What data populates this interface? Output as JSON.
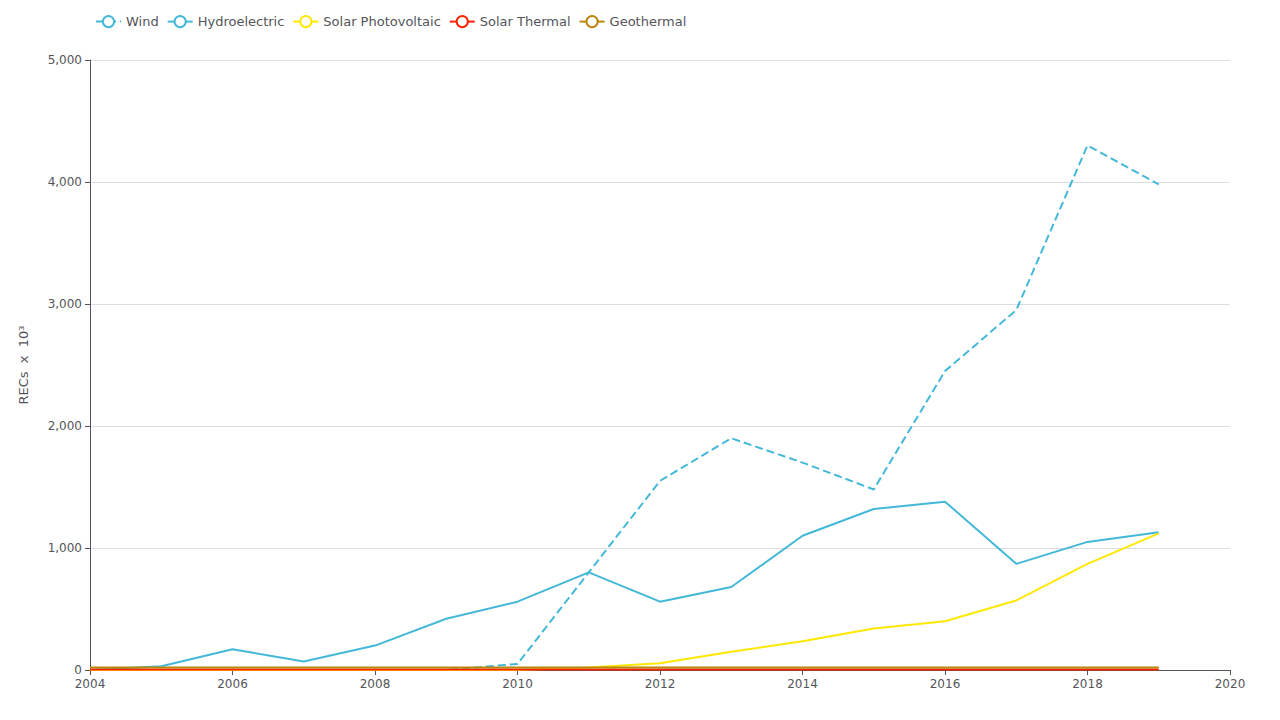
{
  "chart_data": {
    "type": "line",
    "ylabel": "RECs  x  10³",
    "x": [
      2004,
      2005,
      2006,
      2007,
      2008,
      2009,
      2010,
      2011,
      2012,
      2013,
      2014,
      2015,
      2016,
      2017,
      2018,
      2019
    ],
    "series": [
      {
        "name": "Wind",
        "color": "#44B8D8",
        "line_style": "dashed",
        "values": [
          0,
          0,
          0,
          0,
          0,
          0,
          50,
          800,
          1550,
          1900,
          1700,
          1480,
          2450,
          2950,
          4300,
          3980
        ]
      },
      {
        "name": "Hydroelectric",
        "color": "#44B8D8",
        "line_style": "solid",
        "values": [
          0,
          30,
          170,
          70,
          200,
          420,
          560,
          800,
          560,
          680,
          1100,
          1320,
          1380,
          870,
          1050,
          1130
        ]
      },
      {
        "name": "Solar Photovoltaic",
        "color": "#FFE800",
        "line_style": "solid",
        "values": [
          0,
          0,
          0,
          0,
          0,
          0,
          0,
          20,
          55,
          150,
          235,
          340,
          400,
          570,
          870,
          1120
        ]
      },
      {
        "name": "Solar Thermal",
        "color": "#FF2200",
        "line_style": "solid",
        "values": [
          5,
          5,
          5,
          5,
          5,
          5,
          5,
          5,
          5,
          5,
          5,
          5,
          5,
          5,
          5,
          5
        ]
      },
      {
        "name": "Geothermal",
        "color": "#B8860B",
        "line_style": "solid",
        "values": [
          20,
          20,
          20,
          20,
          20,
          20,
          20,
          20,
          20,
          20,
          20,
          20,
          20,
          20,
          20,
          20
        ]
      }
    ],
    "xlim": [
      2004,
      2020
    ],
    "xticks": [
      2004,
      2006,
      2008,
      2010,
      2012,
      2014,
      2016,
      2018,
      2020
    ],
    "ylim": [
      0,
      5000
    ],
    "yticks": [
      0,
      {
        "value": 1000,
        "label": "1,000"
      },
      {
        "value": 2000,
        "label": "2,000"
      },
      {
        "value": 3000,
        "label": "3,000"
      },
      {
        "value": 4000,
        "label": "4,000"
      },
      {
        "value": 5000,
        "label": "5,000"
      }
    ],
    "grid": true,
    "legend": "upper left"
  }
}
